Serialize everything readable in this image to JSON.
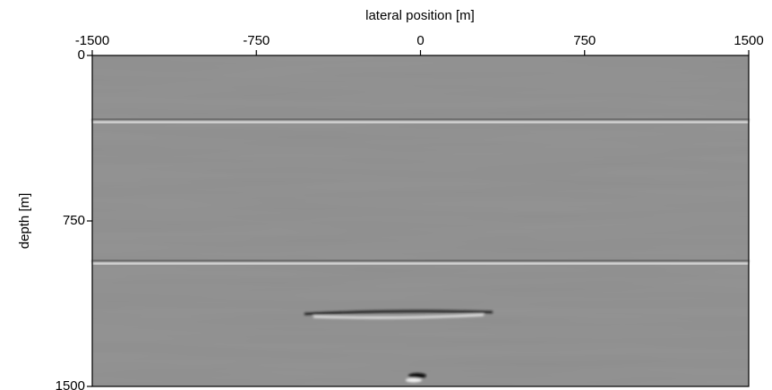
{
  "chart_data": {
    "type": "image",
    "xlabel": "lateral position [m]",
    "ylabel": "depth [m]",
    "xlim": [
      -1500,
      1500
    ],
    "xticks": [
      -1500,
      -750,
      0,
      750,
      1500
    ],
    "ylim": [
      0,
      1500
    ],
    "yticks": [
      0,
      750,
      1500
    ],
    "y_inverted": true,
    "xaxis_position": "top",
    "color": "#8e8e8e"
  }
}
